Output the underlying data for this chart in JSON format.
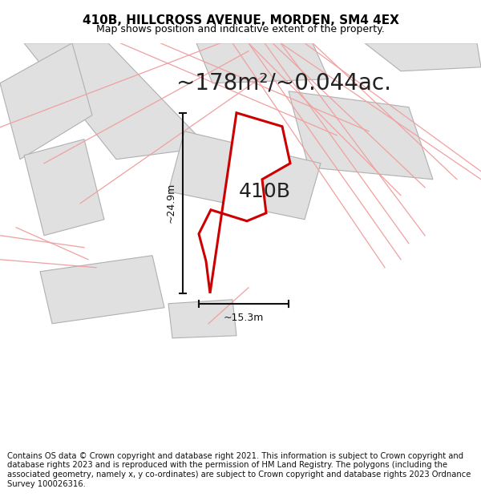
{
  "title": "410B, HILLCROSS AVENUE, MORDEN, SM4 4EX",
  "subtitle": "Map shows position and indicative extent of the property.",
  "area_text": "~178m²/~0.044ac.",
  "label": "410B",
  "dim_v_label": "~24.9m",
  "dim_h_label": "~15.3m",
  "footer": "Contains OS data © Crown copyright and database right 2021. This information is subject to Crown copyright and database rights 2023 and is reproduced with the permission of HM Land Registry. The polygons (including the associated geometry, namely x, y co-ordinates) are subject to Crown copyright and database rights 2023 Ordnance Survey 100026316.",
  "bg_color": "#ffffff",
  "map_bg": "#f8f8f8",
  "neighbor_fc": "#e0e0e0",
  "neighbor_ec": "#b0b0b0",
  "road_color": "#f0a0a0",
  "highlight_ec": "#cc0000",
  "highlight_fc": "#ffffff",
  "title_fontsize": 11,
  "subtitle_fontsize": 9,
  "area_fontsize": 20,
  "label_fontsize": 18,
  "dim_fontsize": 9,
  "footer_fontsize": 7.2
}
